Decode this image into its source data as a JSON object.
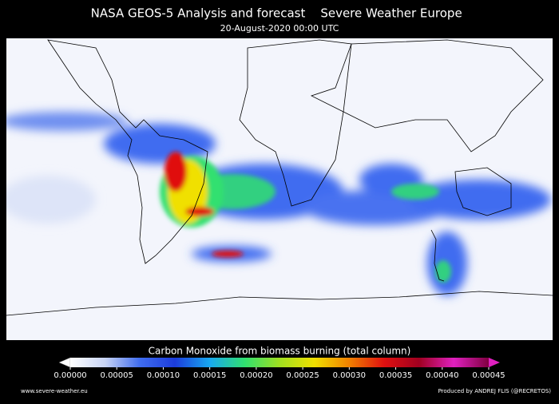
{
  "header": {
    "title": "NASA GEOS-5 Analysis and forecast",
    "source": "Severe Weather Europe",
    "subtitle": "20-August-2020 00:00 UTC"
  },
  "colorbar": {
    "label": "Carbon Monoxide from biomass burning (total column)",
    "lim": [
      0,
      0.00045
    ],
    "colors": [
      "#ffffff",
      "#c8d4f4",
      "#3f6cf0",
      "#1c3cdc",
      "#18a8f0",
      "#30e070",
      "#a0e020",
      "#f0e000",
      "#f08000",
      "#e01010",
      "#a00020",
      "#e020c0",
      "#800040"
    ],
    "ticks": [
      {
        "value": 0,
        "label": "0.00000"
      },
      {
        "value": 5e-05,
        "label": "0.00005"
      },
      {
        "value": 0.0001,
        "label": "0.00010"
      },
      {
        "value": 0.00015,
        "label": "0.00015"
      },
      {
        "value": 0.0002,
        "label": "0.00020"
      },
      {
        "value": 0.00025,
        "label": "0.00025"
      },
      {
        "value": 0.0003,
        "label": "0.00030"
      },
      {
        "value": 0.00035,
        "label": "0.00035"
      },
      {
        "value": 0.0004,
        "label": "0.00040"
      },
      {
        "value": 0.00045,
        "label": "0.00045"
      }
    ]
  },
  "footer": {
    "left": "www.severe-weather.eu",
    "right": "Produced by ANDREJ FLIS (@RECRETOS)"
  }
}
